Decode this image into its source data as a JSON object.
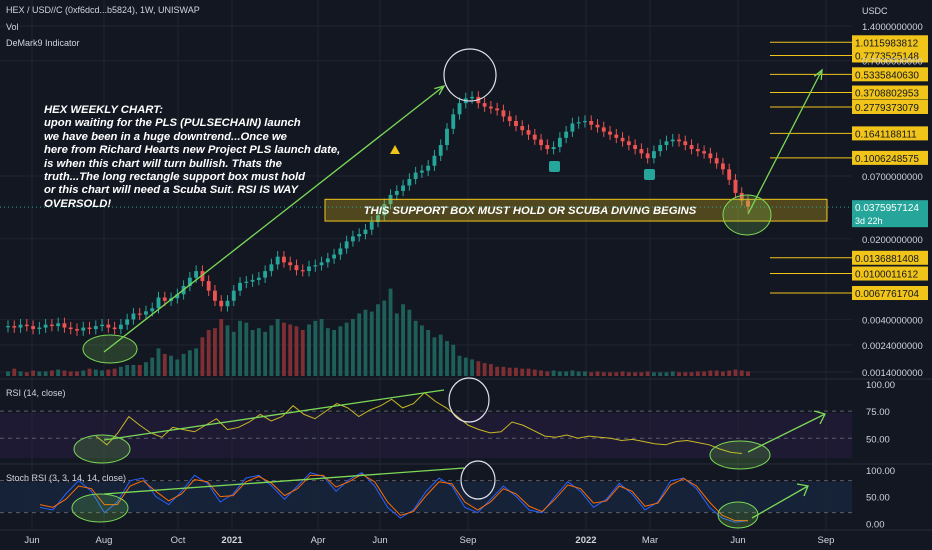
{
  "header": {
    "symbol": "HEX / USD//C (0xf6dcd...b5824), 1W, UNISWAP",
    "vol_label": "Vol",
    "indicator": "DeMark9 Indicator",
    "currency": "USDC"
  },
  "annotation": [
    "HEX WEEKLY CHART:",
    "upon waiting for the PLS (PULSECHAIN) launch",
    "we have been in a huge downtrend...Once we",
    "here from Richard Hearts new Project PLS launch date,",
    "is when this chart will turn bullish. Thats the",
    "truth...The long rectangle support box must hold",
    "or this chart will need a Scuba Suit. RSI IS WAY",
    "OVERSOLD!"
  ],
  "support_box_text": "THIS SUPPORT BOX MUST HOLD OR SCUBA DIVING BEGINS",
  "price_axis": {
    "ticks": [
      "1.4000000000",
      "0.7000000000",
      "0.0700000000",
      "0.0200000000",
      "0.0040000000",
      "0.0024000000",
      "0.0014000000"
    ],
    "levels": [
      "1.0115983812",
      "0.7773525148",
      "0.5335840630",
      "0.3708802953",
      "0.2779373079",
      "0.1641188111",
      "0.1006248575",
      "0.0136881408",
      "0.0100011612",
      "0.0067761704"
    ],
    "current_price": "0.0375957124",
    "countdown": "3d 22h"
  },
  "time_axis": [
    "Jun",
    "Aug",
    "Oct",
    "2021",
    "Apr",
    "Jun",
    "Sep",
    "2022",
    "Mar",
    "Jun",
    "Sep"
  ],
  "panes": {
    "rsi": {
      "label": "RSI (14, close)",
      "ticks": [
        "100.00",
        "75.00",
        "50.00"
      ]
    },
    "stoch": {
      "label": "Stoch RSI (3, 3, 14, 14, close)",
      "ticks": [
        "100.00",
        "50.00",
        "0.00"
      ]
    }
  },
  "colors": {
    "background": "#131722",
    "up": "#26a69a",
    "down": "#ef5350",
    "support_box": "#f0c419",
    "arrow": "#7cd957",
    "rsi_line": "#c9b826",
    "stoch_k": "#2962ff",
    "stoch_d": "#ff6d00"
  },
  "chart_data": [
    {
      "type": "candlestick",
      "title": "HEX / USD//C (0xf6dcd...b5824), 1W, UNISWAP",
      "ylabel": "USDC",
      "yscale": "log",
      "ylim": [
        0.0014,
        1.4
      ],
      "x_ticks": [
        "Jun",
        "Aug",
        "Oct",
        "2021",
        "Apr",
        "Jun",
        "Sep",
        "2022",
        "Mar",
        "Jun",
        "Sep"
      ],
      "y_ticks": [
        1.4,
        0.7,
        0.07,
        0.02,
        0.004,
        0.0024,
        0.0014
      ],
      "close_approx": [
        0.0035,
        0.0034,
        0.0036,
        0.0035,
        0.0033,
        0.0034,
        0.0036,
        0.0035,
        0.0037,
        0.0034,
        0.0033,
        0.0032,
        0.0034,
        0.0033,
        0.0035,
        0.0036,
        0.0034,
        0.0033,
        0.0036,
        0.004,
        0.0045,
        0.0044,
        0.0047,
        0.005,
        0.0062,
        0.0058,
        0.0061,
        0.0066,
        0.0078,
        0.0092,
        0.0105,
        0.0086,
        0.0071,
        0.0058,
        0.0052,
        0.0058,
        0.0071,
        0.0083,
        0.0085,
        0.0088,
        0.0092,
        0.0105,
        0.012,
        0.014,
        0.0125,
        0.0118,
        0.0107,
        0.0105,
        0.0115,
        0.0118,
        0.0125,
        0.0135,
        0.0146,
        0.0165,
        0.019,
        0.021,
        0.022,
        0.024,
        0.028,
        0.032,
        0.04,
        0.048,
        0.052,
        0.058,
        0.066,
        0.075,
        0.078,
        0.086,
        0.105,
        0.13,
        0.18,
        0.24,
        0.3,
        0.33,
        0.34,
        0.3,
        0.28,
        0.27,
        0.26,
        0.23,
        0.21,
        0.19,
        0.175,
        0.16,
        0.145,
        0.13,
        0.12,
        0.125,
        0.15,
        0.17,
        0.2,
        0.205,
        0.21,
        0.195,
        0.185,
        0.17,
        0.16,
        0.15,
        0.14,
        0.13,
        0.12,
        0.11,
        0.1,
        0.115,
        0.13,
        0.14,
        0.145,
        0.14,
        0.13,
        0.12,
        0.115,
        0.11,
        0.1,
        0.09,
        0.08,
        0.065,
        0.05,
        0.043,
        0.038
      ],
      "horizontal_levels": [
        1.0115983812,
        0.7773525148,
        0.533584063,
        0.3708802953,
        0.2779373079,
        0.1641188111,
        0.1006248575,
        0.0136881408,
        0.0100011612,
        0.0067761704
      ],
      "last_price": 0.0375957124,
      "support_box_text": "THIS SUPPORT BOX MUST HOLD OR SCUBA DIVING BEGINS",
      "support_zone": [
        0.0285,
        0.044
      ]
    },
    {
      "type": "bar",
      "title": "Vol",
      "values_relative": [
        0.05,
        0.08,
        0.05,
        0.04,
        0.06,
        0.05,
        0.05,
        0.06,
        0.07,
        0.06,
        0.05,
        0.05,
        0.06,
        0.08,
        0.07,
        0.06,
        0.07,
        0.08,
        0.1,
        0.12,
        0.12,
        0.12,
        0.15,
        0.2,
        0.3,
        0.24,
        0.22,
        0.18,
        0.24,
        0.28,
        0.3,
        0.42,
        0.5,
        0.52,
        0.62,
        0.55,
        0.48,
        0.6,
        0.58,
        0.5,
        0.52,
        0.48,
        0.55,
        0.62,
        0.58,
        0.56,
        0.54,
        0.5,
        0.56,
        0.6,
        0.62,
        0.52,
        0.5,
        0.54,
        0.58,
        0.62,
        0.68,
        0.72,
        0.7,
        0.78,
        0.82,
        0.95,
        0.68,
        0.78,
        0.72,
        0.6,
        0.55,
        0.5,
        0.42,
        0.45,
        0.38,
        0.34,
        0.22,
        0.2,
        0.18,
        0.16,
        0.14,
        0.13,
        0.1,
        0.1,
        0.09,
        0.09,
        0.08,
        0.08,
        0.07,
        0.06,
        0.05,
        0.06,
        0.05,
        0.05,
        0.06,
        0.05,
        0.05,
        0.04,
        0.05,
        0.04,
        0.04,
        0.04,
        0.05,
        0.04,
        0.04,
        0.04,
        0.05,
        0.04,
        0.04,
        0.04,
        0.05,
        0.04,
        0.04,
        0.04,
        0.05,
        0.05,
        0.06,
        0.06,
        0.05,
        0.06,
        0.07,
        0.06,
        0.05
      ]
    },
    {
      "type": "line",
      "title": "RSI (14, close)",
      "ylim": [
        30,
        100
      ],
      "y_ticks": [
        100,
        75,
        50
      ],
      "values": [
        52,
        44,
        55,
        70,
        62,
        55,
        51,
        60,
        58,
        56,
        62,
        68,
        58,
        60,
        65,
        72,
        66,
        70,
        80,
        72,
        68,
        75,
        82,
        78,
        70,
        76,
        80,
        86,
        78,
        82,
        92,
        84,
        78,
        70,
        62,
        58,
        55,
        56,
        65,
        62,
        57,
        52,
        51,
        53,
        50,
        52,
        51,
        50,
        48,
        49,
        47,
        45,
        44,
        47,
        48,
        46,
        44,
        40,
        37,
        36
      ]
    },
    {
      "type": "line",
      "title": "Stoch RSI (3, 3, 14, 14, close)",
      "ylim": [
        -5,
        100
      ],
      "y_ticks": [
        100,
        50,
        0
      ],
      "series": [
        {
          "values": [
            30,
            25,
            55,
            80,
            60,
            20,
            40,
            80,
            85,
            50,
            35,
            60,
            90,
            75,
            40,
            55,
            85,
            90,
            70,
            45,
            70,
            95,
            88,
            60,
            82,
            95,
            70,
            30,
            10,
            25,
            60,
            85,
            70,
            30,
            20,
            45,
            70,
            50,
            25,
            20,
            50,
            78,
            60,
            30,
            45,
            75,
            55,
            25,
            40,
            80,
            85,
            65,
            30,
            10,
            2,
            5
          ]
        },
        {
          "values": [
            35,
            30,
            45,
            70,
            65,
            35,
            35,
            70,
            80,
            60,
            42,
            55,
            82,
            78,
            50,
            52,
            78,
            88,
            75,
            52,
            65,
            90,
            90,
            68,
            78,
            92,
            78,
            40,
            15,
            22,
            52,
            78,
            74,
            40,
            25,
            40,
            65,
            55,
            32,
            22,
            45,
            72,
            65,
            38,
            42,
            70,
            60,
            32,
            38,
            72,
            84,
            70,
            40,
            15,
            5,
            5
          ]
        }
      ]
    }
  ]
}
